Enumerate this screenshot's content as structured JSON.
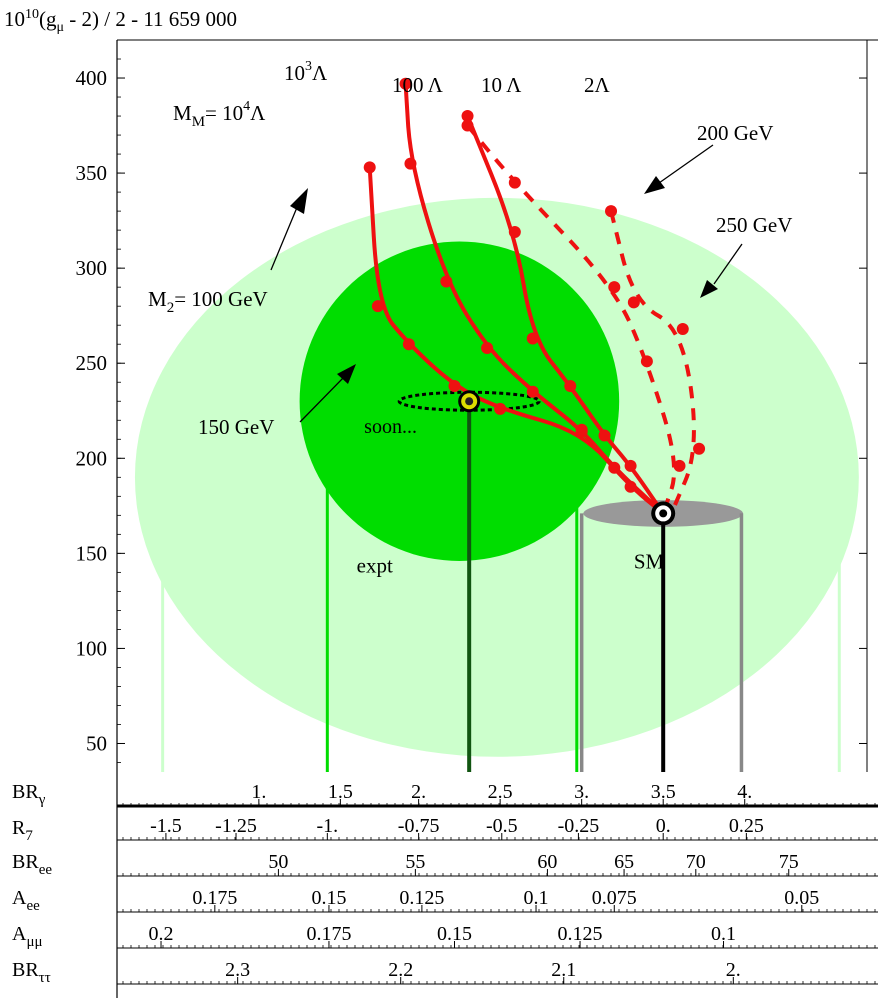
{
  "chart_data": {
    "type": "line",
    "title": "10",
    "title_exp": "10",
    "title_rest": "(g",
    "title_sub": "μ",
    "title_tail": " - 2) / 2  - 11 659 000",
    "y_axis": {
      "ticks": [
        50,
        100,
        150,
        200,
        250,
        300,
        350,
        400
      ],
      "ylim": [
        35,
        420
      ]
    },
    "x_axis": {
      "xlim": [
        0.15,
        4.75
      ]
    },
    "regions": [
      {
        "name": "outer",
        "label": "",
        "color": "#ccffcc",
        "cx": 2.48,
        "cy": 190,
        "rx": 2.22,
        "ry": 147
      },
      {
        "name": "expt",
        "label": "expt",
        "color": "#00dd00",
        "cx": 2.25,
        "cy": 230,
        "rx": 0.98,
        "ry": 84
      },
      {
        "name": "sm",
        "label": "SM",
        "color": "#999999",
        "cx": 3.5,
        "cy": 171,
        "rx": 0.49,
        "ry": 7
      }
    ],
    "soon_label": "soon...",
    "sm_label": "SM",
    "expt_label": "expt",
    "exp_point": {
      "x": 2.31,
      "y": 230
    },
    "sm_point": {
      "x": 3.5,
      "y": 171
    },
    "series": [
      {
        "name": "10^4 Λ",
        "style": "solid",
        "points": [
          [
            1.7,
            353
          ],
          [
            1.75,
            280
          ],
          [
            1.94,
            260
          ],
          [
            2.22,
            238
          ],
          [
            2.5,
            226
          ],
          [
            3.0,
            214
          ],
          [
            3.3,
            185
          ],
          [
            3.5,
            171
          ]
        ]
      },
      {
        "name": "10^3 Λ",
        "style": "solid",
        "points": [
          [
            1.92,
            397
          ],
          [
            1.95,
            355
          ],
          [
            2.17,
            293
          ],
          [
            2.42,
            258
          ],
          [
            2.7,
            235
          ],
          [
            3.0,
            215
          ],
          [
            3.2,
            195
          ],
          [
            3.5,
            171
          ]
        ]
      },
      {
        "name": "100 Λ",
        "style": "solid",
        "points": [
          [
            2.3,
            380
          ],
          [
            2.59,
            319
          ],
          [
            2.7,
            263
          ],
          [
            2.93,
            238
          ],
          [
            3.14,
            212
          ],
          [
            3.3,
            196
          ],
          [
            3.5,
            171
          ]
        ]
      },
      {
        "name": "10 Λ",
        "style": "dashed",
        "points": [
          [
            2.3,
            375
          ],
          [
            2.59,
            345
          ],
          [
            3.2,
            290
          ],
          [
            3.4,
            251
          ],
          [
            3.6,
            196
          ],
          [
            3.5,
            171
          ]
        ]
      },
      {
        "name": "2 Λ",
        "style": "dashed",
        "points": [
          [
            3.18,
            330
          ],
          [
            3.32,
            282
          ],
          [
            3.62,
            268
          ],
          [
            3.72,
            205
          ],
          [
            3.55,
            171
          ]
        ]
      }
    ],
    "annotations": {
      "mm_label": "M",
      "mm_sub": "M",
      "mm_eq": "=  10",
      "mm_exp": "4",
      "mm_tail": "Λ",
      "l3": "10",
      "l3_exp": "3",
      "l3_tail": "Λ",
      "l100": "100 Λ",
      "l10": "10 Λ",
      "l2": "2Λ",
      "m2_label": "M",
      "m2_sub": "2",
      "m2_tail": "= 100 GeV",
      "gev150": "150 GeV",
      "gev200": "200 GeV",
      "gev250": "250 GeV"
    },
    "scales": [
      {
        "label": "BR",
        "sub": "γ",
        "ticks": [
          {
            "x": 1.02,
            "t": "1."
          },
          {
            "x": 1.52,
            "t": "1.5"
          },
          {
            "x": 2.0,
            "t": "2."
          },
          {
            "x": 2.5,
            "t": "2.5"
          },
          {
            "x": 3.0,
            "t": "3."
          },
          {
            "x": 3.5,
            "t": "3.5"
          },
          {
            "x": 4.0,
            "t": "4."
          }
        ]
      },
      {
        "label": "R",
        "sub": "7",
        "ticks": [
          {
            "x": 0.45,
            "t": "-1.5"
          },
          {
            "x": 0.88,
            "t": "-1.25"
          },
          {
            "x": 1.44,
            "t": "-1."
          },
          {
            "x": 2.0,
            "t": "-0.75"
          },
          {
            "x": 2.51,
            "t": "-0.5"
          },
          {
            "x": 2.98,
            "t": "-0.25"
          },
          {
            "x": 3.5,
            "t": "0."
          },
          {
            "x": 4.01,
            "t": "0.25"
          }
        ]
      },
      {
        "label": "BR",
        "sub": "ee",
        "ticks": [
          {
            "x": 1.14,
            "t": "50"
          },
          {
            "x": 1.98,
            "t": "55"
          },
          {
            "x": 2.79,
            "t": "60"
          },
          {
            "x": 3.26,
            "t": "65"
          },
          {
            "x": 3.7,
            "t": "70"
          },
          {
            "x": 4.27,
            "t": "75"
          }
        ]
      },
      {
        "label": "A",
        "sub": "ee",
        "ticks": [
          {
            "x": 0.75,
            "t": "0.175"
          },
          {
            "x": 1.45,
            "t": "0.15"
          },
          {
            "x": 2.02,
            "t": "0.125"
          },
          {
            "x": 2.72,
            "t": "0.1"
          },
          {
            "x": 3.2,
            "t": "0.075"
          },
          {
            "x": 4.35,
            "t": "0.05"
          }
        ]
      },
      {
        "label": "A",
        "sub": "μμ",
        "ticks": [
          {
            "x": 0.42,
            "t": "0.2"
          },
          {
            "x": 1.45,
            "t": "0.175"
          },
          {
            "x": 2.22,
            "t": "0.15"
          },
          {
            "x": 2.99,
            "t": "0.125"
          },
          {
            "x": 3.87,
            "t": "0.1"
          }
        ]
      },
      {
        "label": "BR",
        "sub": "ττ",
        "ticks": [
          {
            "x": 0.89,
            "t": "2.3"
          },
          {
            "x": 1.89,
            "t": "2.2"
          },
          {
            "x": 2.89,
            "t": "2.1"
          },
          {
            "x": 3.93,
            "t": "2."
          }
        ]
      }
    ]
  }
}
